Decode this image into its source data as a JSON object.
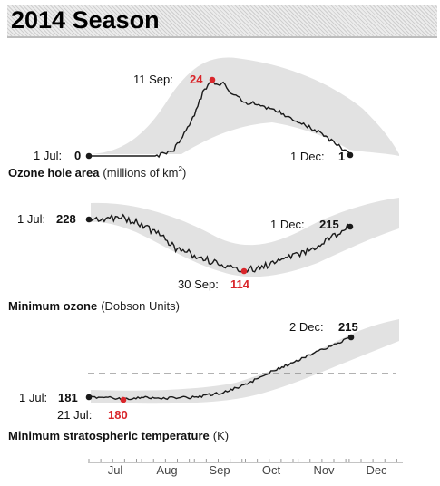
{
  "header": {
    "title": "2014 Season"
  },
  "colors": {
    "band": "#e2e2e2",
    "line": "#1a1a1a",
    "highlight": "#d9262b",
    "axis": "#888888",
    "reference_line": "#666666"
  },
  "panels": [
    {
      "caption_bold": "Ozone hole area",
      "caption_unit": "(millions of km",
      "caption_sup": "2",
      "caption_close": ")",
      "start": {
        "date": "1 Jul:",
        "value": "0"
      },
      "peak": {
        "date": "11 Sep:",
        "value": "24"
      },
      "end": {
        "date": "1 Dec:",
        "value": "1"
      }
    },
    {
      "caption_bold": "Minimum ozone",
      "caption_unit": "(Dobson Units)",
      "start": {
        "date": "1 Jul:",
        "value": "228"
      },
      "low": {
        "date": "30 Sep:",
        "value": "114"
      },
      "end": {
        "date": "1 Dec:",
        "value": "215"
      }
    },
    {
      "caption_bold": "Minimum stratospheric temperature",
      "caption_unit": "(K)",
      "start": {
        "date": "1 Jul:",
        "value": "181"
      },
      "low": {
        "date": "21 Jul:",
        "value": "180"
      },
      "end": {
        "date": "2 Dec:",
        "value": "215"
      }
    }
  ],
  "axis": {
    "months": [
      "Jul",
      "Aug",
      "Sep",
      "Oct",
      "Nov",
      "Dec"
    ]
  },
  "chart_data": [
    {
      "type": "line",
      "title": "Ozone hole area",
      "ylabel": "millions of km²",
      "x_range": [
        "1 Jul",
        "31 Dec"
      ],
      "series": [
        {
          "values": [
            [
              "1 Jul",
              0
            ],
            [
              "20 Jul",
              0
            ],
            [
              "10 Aug",
              0
            ],
            [
              "20 Aug",
              2
            ],
            [
              "25 Aug",
              6
            ],
            [
              "1 Sep",
              13
            ],
            [
              "6 Sep",
              20
            ],
            [
              "11 Sep",
              24
            ],
            [
              "15 Sep",
              22
            ],
            [
              "18 Sep",
              23.5
            ],
            [
              "22 Sep",
              20
            ],
            [
              "1 Oct",
              17
            ],
            [
              "10 Oct",
              16
            ],
            [
              "20 Oct",
              14
            ],
            [
              "1 Nov",
              11
            ],
            [
              "15 Nov",
              7
            ],
            [
              "25 Nov",
              3
            ],
            [
              "1 Dec",
              1
            ]
          ]
        }
      ],
      "highlight": {
        "x": "11 Sep",
        "y": 24
      }
    },
    {
      "type": "line",
      "title": "Minimum ozone",
      "ylabel": "Dobson Units",
      "x_range": [
        "1 Jul",
        "31 Dec"
      ],
      "series": [
        {
          "values": [
            [
              "1 Jul",
              228
            ],
            [
              "10 Jul",
              230
            ],
            [
              "20 Jul",
              232
            ],
            [
              "1 Aug",
              218
            ],
            [
              "15 Aug",
              185
            ],
            [
              "22 Aug",
              160
            ],
            [
              "1 Sep",
              150
            ],
            [
              "15 Sep",
              130
            ],
            [
              "30 Sep",
              114
            ],
            [
              "15 Oct",
              128
            ],
            [
              "1 Nov",
              150
            ],
            [
              "15 Nov",
              175
            ],
            [
              "1 Dec",
              215
            ]
          ]
        }
      ],
      "highlight": {
        "x": "30 Sep",
        "y": 114
      }
    },
    {
      "type": "line",
      "title": "Minimum stratospheric temperature",
      "ylabel": "K",
      "x_range": [
        "1 Jul",
        "31 Dec"
      ],
      "series": [
        {
          "values": [
            [
              "1 Jul",
              181
            ],
            [
              "10 Jul",
              181
            ],
            [
              "21 Jul",
              180
            ],
            [
              "1 Aug",
              181
            ],
            [
              "15 Aug",
              180.5
            ],
            [
              "1 Sep",
              181
            ],
            [
              "15 Sep",
              183
            ],
            [
              "1 Oct",
              188
            ],
            [
              "15 Oct",
              195
            ],
            [
              "1 Nov",
              202
            ],
            [
              "15 Nov",
              208
            ],
            [
              "2 Dec",
              215
            ]
          ]
        }
      ],
      "highlight": {
        "x": "21 Jul",
        "y": 180
      }
    }
  ]
}
